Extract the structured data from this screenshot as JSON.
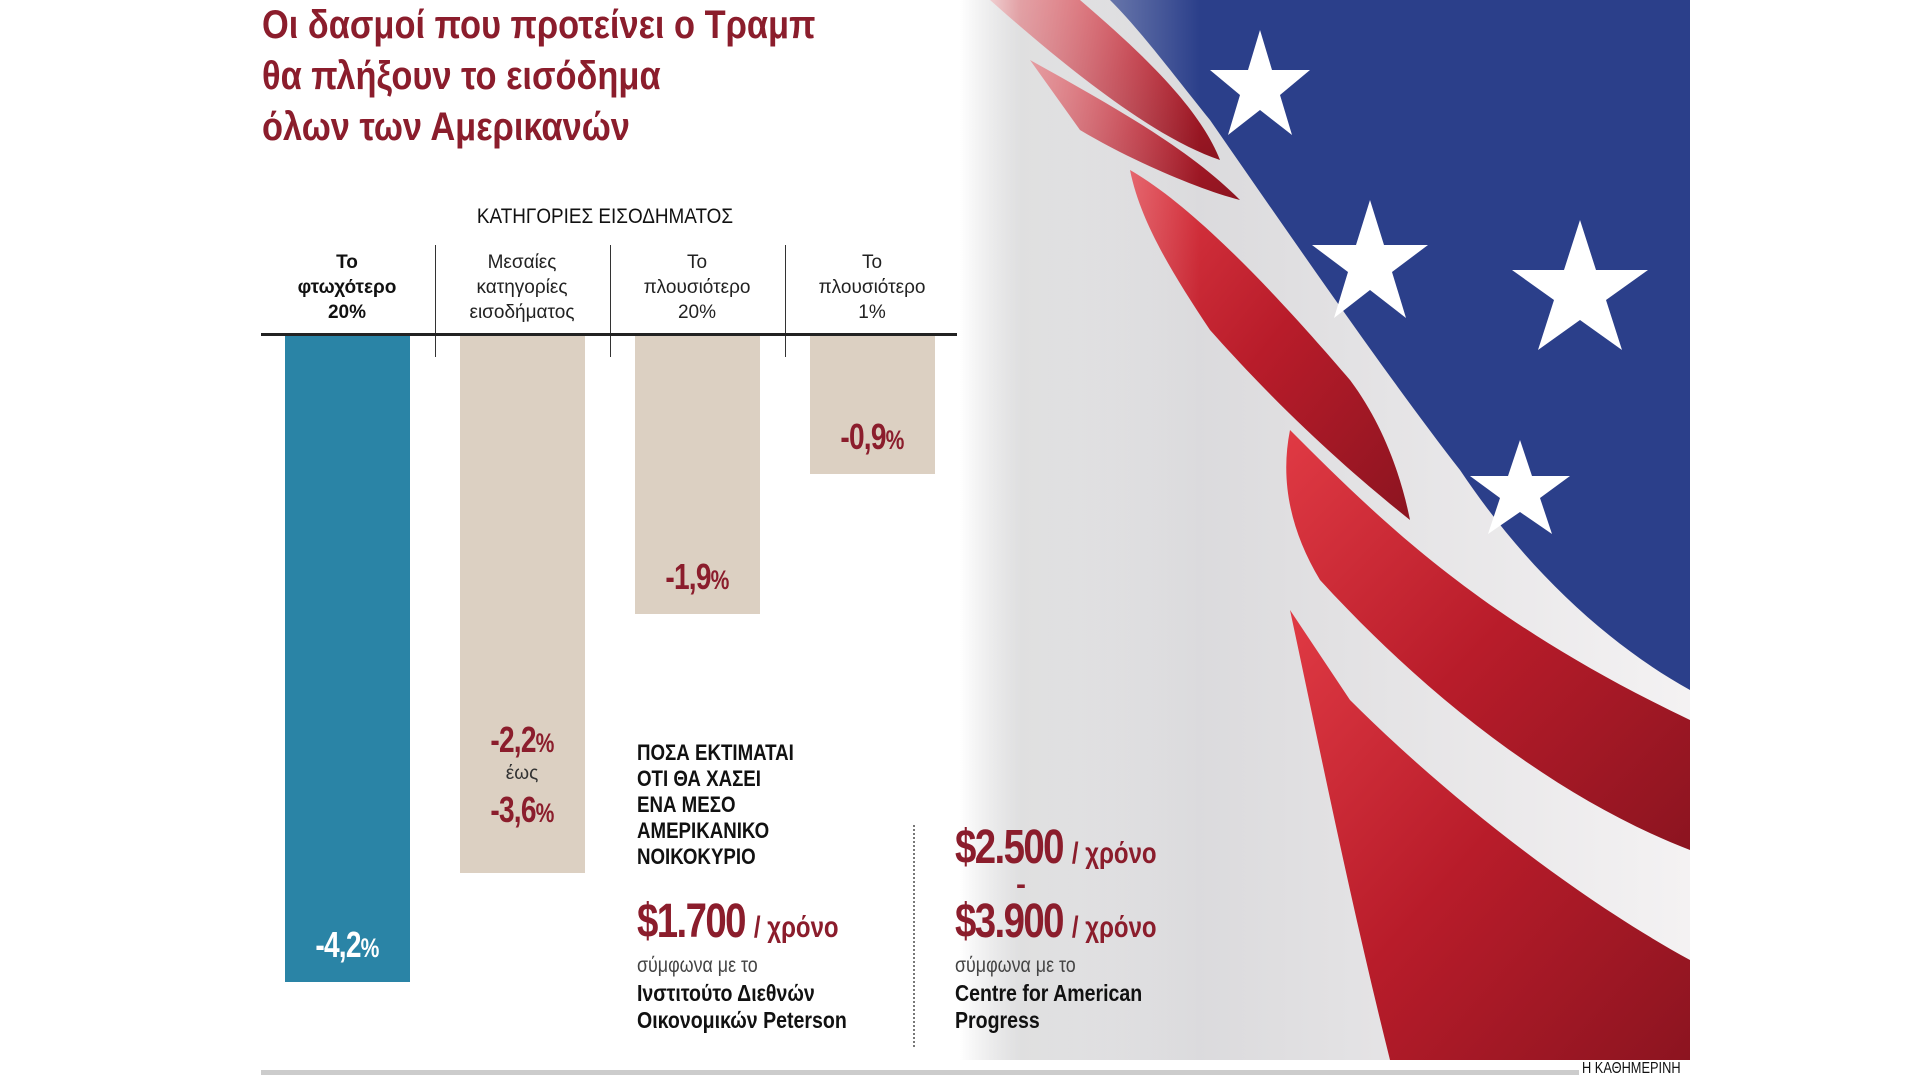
{
  "title": [
    "Οι δασμοί που προτείνει ο Τραμπ",
    "θα πλήξουν το εισόδημα",
    "όλων των Αμερικανών"
  ],
  "colors": {
    "title": "#8b1d2c",
    "highlight_bar": "#2a84a6",
    "bar": "#dcd0c2",
    "value": "#8b1d2c"
  },
  "chart_data": {
    "type": "bar",
    "title": "ΚΑΤΗΓΟΡΙΕΣ ΕΙΣΟΔΗΜΑΤΟΣ",
    "categories": [
      [
        "Το",
        "φτωχότερο",
        "20%"
      ],
      [
        "Μεσαίες",
        "κατηγορίες",
        "εισοδήματος"
      ],
      [
        "Το",
        "πλουσιότερο",
        "20%"
      ],
      [
        "Το",
        "πλουσιότερο",
        "1%"
      ]
    ],
    "values": [
      -4.2,
      -3.6,
      -1.9,
      -0.9
    ],
    "value_ranges": [
      null,
      [
        -2.2,
        -3.6
      ],
      null,
      null
    ],
    "labels": [
      {
        "num": "-4,2",
        "pct": "%",
        "color": "#ffffff"
      },
      {
        "num": "-2,2",
        "pct": "%",
        "sep": "έως",
        "num2": "-3,6",
        "pct2": "%"
      },
      {
        "num": "-1,9",
        "pct": "%"
      },
      {
        "num": "-0,9",
        "pct": "%"
      }
    ],
    "ylim": [
      -4.2,
      0
    ],
    "xlabel": "",
    "ylabel": ""
  },
  "estimate": {
    "heading": [
      "ΠΟΣΑ ΕΚΤΙΜΑΤΑΙ",
      "ΟΤΙ ΘΑ ΧΑΣΕΙ",
      "ΕΝΑ ΜΕΣΟ",
      "ΑΜΕΡΙΚΑΝΙΚΟ",
      "ΝΟΙΚΟΚΥΡΙΟ"
    ],
    "left": {
      "amount": "$1.700",
      "per": "/ χρόνο",
      "according": "σύμφωνα με το",
      "source": [
        "Ινστιτούτο Διεθνών",
        "Οικονομικών Peterson"
      ]
    },
    "right": {
      "amount1": "$2.500",
      "per1": "/ χρόνο",
      "dash": "-",
      "amount2": "$3.900",
      "per2": "/ χρόνο",
      "according": "σύμφωνα με το",
      "source": [
        "Centre for American",
        "Progress"
      ]
    }
  },
  "credit": "Η ΚΑΘΗΜΕΡΙΝΗ"
}
